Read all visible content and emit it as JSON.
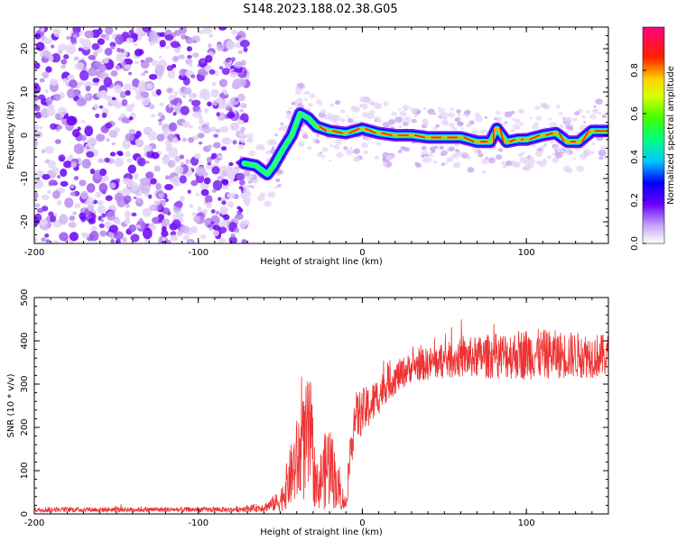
{
  "title": "S148.2023.188.02.38.G05",
  "chart_data": [
    {
      "type": "heatmap",
      "xlabel": "Height of straight line (km)",
      "ylabel": "Frequency (Hz)",
      "xlim": [
        -200,
        150
      ],
      "ylim": [
        -25,
        25
      ],
      "x_ticks": [
        -200,
        -100,
        0,
        100
      ],
      "x_tick_labels": [
        "-200",
        "-100",
        "0",
        "100"
      ],
      "y_ticks": [
        -20,
        -10,
        0,
        10,
        20
      ],
      "y_tick_labels": [
        "-20",
        "-10",
        "0",
        "10",
        "20"
      ],
      "colorbar": {
        "label": "Normalized spectral amplitude",
        "range": [
          0,
          1
        ],
        "ticks": [
          0,
          0.2,
          0.4,
          0.6,
          0.8
        ],
        "tick_labels": [
          "0.0",
          "0.2",
          "0.4",
          "0.6",
          "0.8"
        ],
        "colormap": "hsv-like (white/violet low -> blue -> cyan -> green -> yellow -> red -> magenta high)"
      },
      "noise_region_x": [
        -200,
        -70
      ],
      "signal_trace": [
        {
          "x": -72,
          "y": -6.5
        },
        {
          "x": -65,
          "y": -7
        },
        {
          "x": -58,
          "y": -9
        },
        {
          "x": -54,
          "y": -7
        },
        {
          "x": -48,
          "y": -3
        },
        {
          "x": -43,
          "y": 0
        },
        {
          "x": -38,
          "y": 5
        },
        {
          "x": -33,
          "y": 4
        },
        {
          "x": -28,
          "y": 2
        },
        {
          "x": -20,
          "y": 1
        },
        {
          "x": -10,
          "y": 0.5
        },
        {
          "x": 0,
          "y": 1.5
        },
        {
          "x": 10,
          "y": 0.5
        },
        {
          "x": 20,
          "y": 0
        },
        {
          "x": 30,
          "y": 0
        },
        {
          "x": 40,
          "y": -0.5
        },
        {
          "x": 50,
          "y": -0.5
        },
        {
          "x": 60,
          "y": -0.5
        },
        {
          "x": 70,
          "y": -1.5
        },
        {
          "x": 78,
          "y": -1.5
        },
        {
          "x": 82,
          "y": 1.5
        },
        {
          "x": 88,
          "y": -1.5
        },
        {
          "x": 95,
          "y": -1
        },
        {
          "x": 100,
          "y": -1
        },
        {
          "x": 110,
          "y": 0
        },
        {
          "x": 118,
          "y": 0.5
        },
        {
          "x": 125,
          "y": -1.5
        },
        {
          "x": 132,
          "y": -1.5
        },
        {
          "x": 140,
          "y": 1
        },
        {
          "x": 150,
          "y": 1
        }
      ]
    },
    {
      "type": "line",
      "xlabel": "Height of straight line (km)",
      "ylabel": "SNR (10 * v/v)",
      "xlim": [
        -200,
        150
      ],
      "ylim": [
        0,
        500
      ],
      "x_ticks": [
        -200,
        -100,
        0,
        100
      ],
      "x_tick_labels": [
        "-200",
        "-100",
        "0",
        "100"
      ],
      "y_ticks": [
        0,
        100,
        200,
        300,
        400,
        500
      ],
      "y_tick_labels": [
        "0",
        "100",
        "200",
        "300",
        "400",
        "500"
      ],
      "color": "#ee3333",
      "series_envelope": [
        {
          "x": -200,
          "mean": 10,
          "spread": 6
        },
        {
          "x": -80,
          "mean": 10,
          "spread": 6
        },
        {
          "x": -60,
          "mean": 15,
          "spread": 10
        },
        {
          "x": -50,
          "mean": 30,
          "spread": 25
        },
        {
          "x": -40,
          "mean": 120,
          "spread": 100
        },
        {
          "x": -32,
          "mean": 180,
          "spread": 150
        },
        {
          "x": -28,
          "mean": 60,
          "spread": 50
        },
        {
          "x": -20,
          "mean": 120,
          "spread": 110
        },
        {
          "x": -15,
          "mean": 60,
          "spread": 50
        },
        {
          "x": -10,
          "mean": 20,
          "spread": 15
        },
        {
          "x": -5,
          "mean": 220,
          "spread": 60
        },
        {
          "x": 5,
          "mean": 250,
          "spread": 50
        },
        {
          "x": 15,
          "mean": 300,
          "spread": 40
        },
        {
          "x": 30,
          "mean": 340,
          "spread": 35
        },
        {
          "x": 60,
          "mean": 360,
          "spread": 45
        },
        {
          "x": 100,
          "mean": 370,
          "spread": 60
        },
        {
          "x": 150,
          "mean": 365,
          "spread": 50
        }
      ]
    }
  ]
}
